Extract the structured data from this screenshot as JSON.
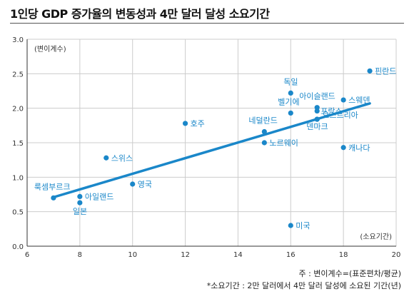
{
  "chart_data": {
    "type": "scatter",
    "title": "1인당 GDP 증가율의 변동성과 4만 달러 달성 소요기간",
    "ylabel": "(변이계수)",
    "xlabel": "(소요기간)",
    "xlim": [
      6,
      20
    ],
    "ylim": [
      0.0,
      3.0
    ],
    "x_ticks": [
      "6",
      "8",
      "10",
      "12",
      "14",
      "16",
      "18",
      "20"
    ],
    "y_ticks": [
      "0.0",
      "0.5",
      "1.0",
      "1.5",
      "2.0",
      "2.5",
      "3.0"
    ],
    "grid": true,
    "points": [
      {
        "name": "룩셈부르크",
        "x": 7,
        "y": 0.7
      },
      {
        "name": "아일랜드",
        "x": 8,
        "y": 0.72
      },
      {
        "name": "일본",
        "x": 8,
        "y": 0.63
      },
      {
        "name": "스위스",
        "x": 9,
        "y": 1.28
      },
      {
        "name": "영국",
        "x": 10,
        "y": 0.9
      },
      {
        "name": "호주",
        "x": 12,
        "y": 1.78
      },
      {
        "name": "네덜란드",
        "x": 15,
        "y": 1.66
      },
      {
        "name": "노르웨이",
        "x": 15,
        "y": 1.5
      },
      {
        "name": "독일",
        "x": 16,
        "y": 2.22
      },
      {
        "name": "벨기에",
        "x": 16,
        "y": 1.93
      },
      {
        "name": "미국",
        "x": 16,
        "y": 0.3
      },
      {
        "name": "아이슬랜드",
        "x": 17,
        "y": 2.01
      },
      {
        "name": "프랑스",
        "x": 17,
        "y": 1.96
      },
      {
        "name": "오스트리아",
        "x": 17,
        "y": 1.84
      },
      {
        "name": "덴마크",
        "x": 17,
        "y": 1.84
      },
      {
        "name": "스웨덴",
        "x": 18,
        "y": 2.12
      },
      {
        "name": "캐나다",
        "x": 18,
        "y": 1.43
      },
      {
        "name": "핀란드",
        "x": 19,
        "y": 2.54
      }
    ],
    "trendline": {
      "x": [
        7,
        19
      ],
      "y": [
        0.71,
        2.07
      ]
    }
  },
  "footnotes": [
    "주 : 변이계수=(표준편차/평균)",
    "*소요기간 : 2만 달러에서 4만 달러 달성에 소요된 기간(년)"
  ],
  "colors": {
    "accent": "#1a87c9",
    "grid": "#cccccc",
    "axis": "#333333"
  }
}
